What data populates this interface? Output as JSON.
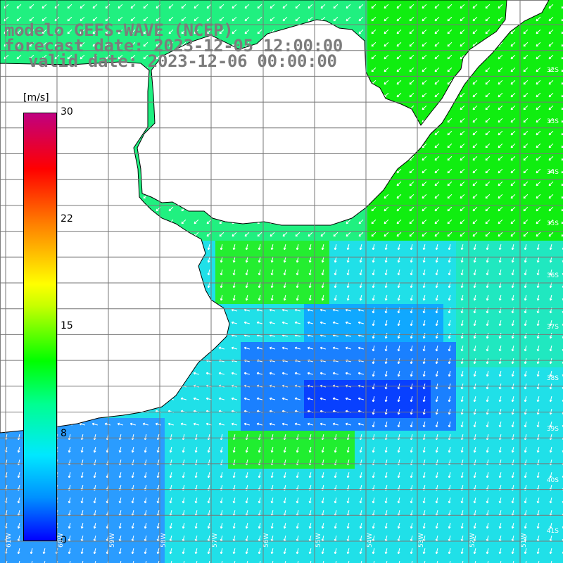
{
  "title": {
    "model": "modelo GEFS-WAVE (NCEP)",
    "forecast": "forecast date: 2023-12-05 12:00:00",
    "valid": "valid date: 2023-12-06 00:00:00"
  },
  "colorbar": {
    "unit": "[m/s]",
    "ticks": [
      "30",
      "22",
      "15",
      "8",
      "0"
    ],
    "colors": [
      "#0000ff",
      "#0090ff",
      "#00e8ff",
      "#00ff90",
      "#00ff00",
      "#c8ff00",
      "#ffff00",
      "#ff8000",
      "#ff0000",
      "#c00080"
    ]
  },
  "axes": {
    "lat_labels": [
      "32S",
      "33S",
      "34S",
      "35S",
      "36S",
      "37S",
      "38S",
      "39S",
      "40S",
      "41S"
    ],
    "lon_labels": [
      "61W",
      "60W",
      "59W",
      "58W",
      "57W",
      "56W",
      "55W",
      "54W",
      "53W",
      "52W",
      "51W"
    ]
  },
  "map": {
    "land_color": "#ffffff",
    "coast_color": "#000000",
    "grid_color": "#777777"
  }
}
